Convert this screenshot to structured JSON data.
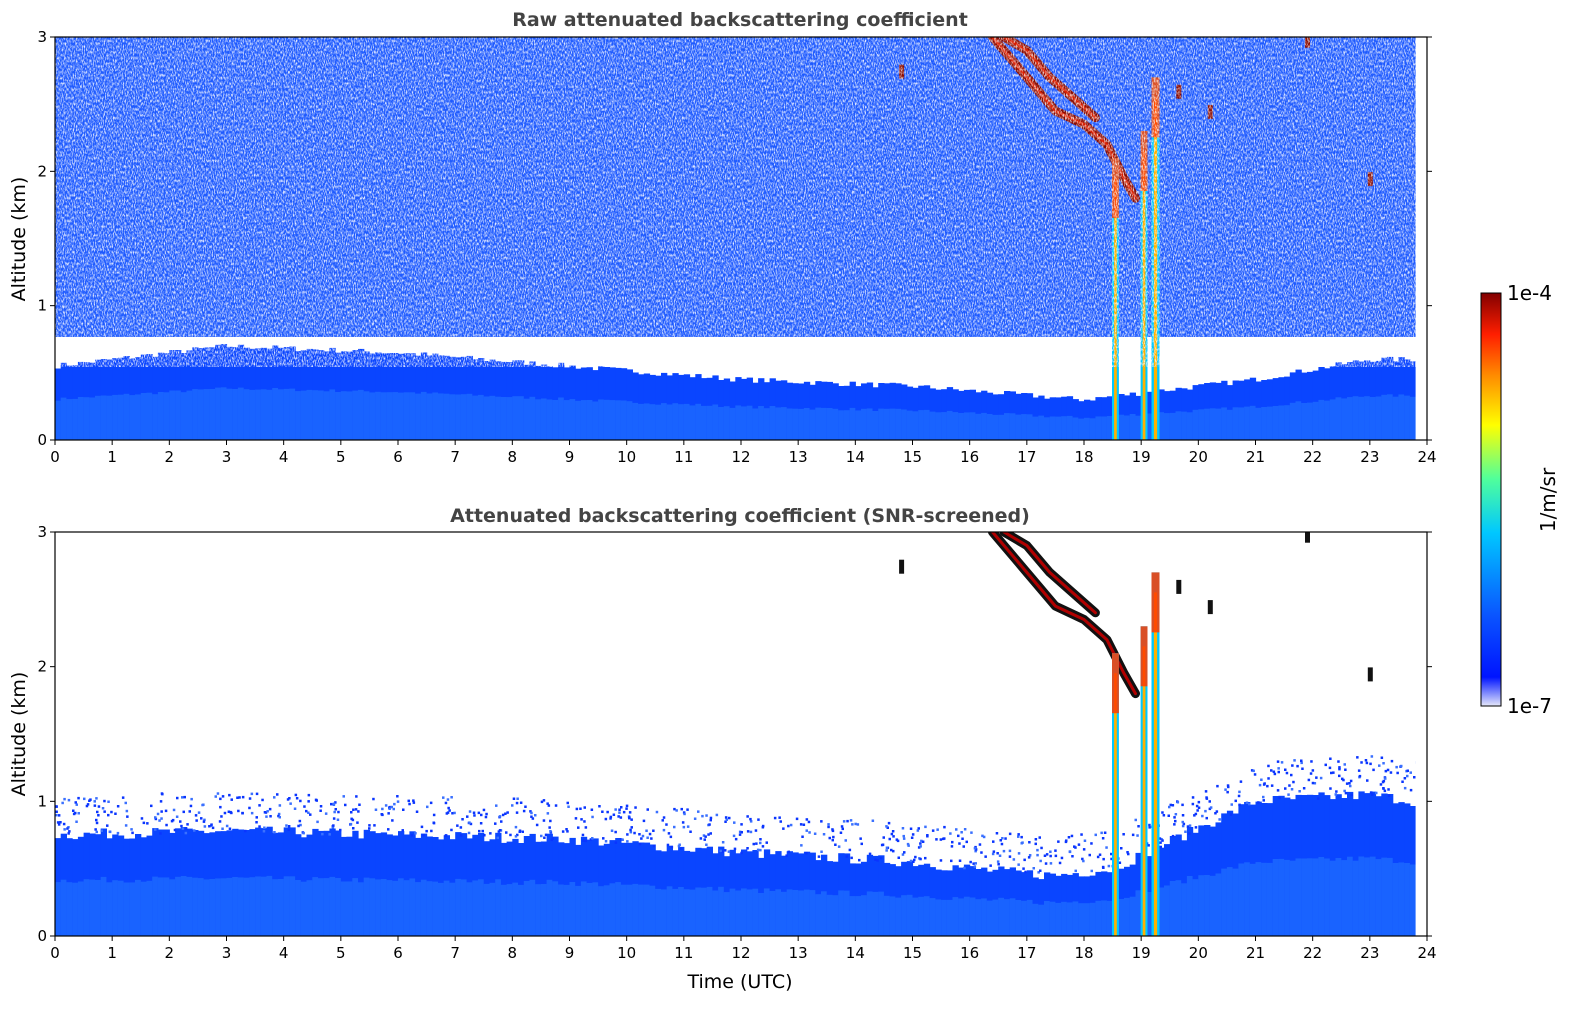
{
  "colors": {
    "background": "#ffffff",
    "title": "#444444",
    "colormap": [
      "#e6e8fa",
      "#0014ff",
      "#0a55ff",
      "#00c8ff",
      "#50ff9b",
      "#ffff00",
      "#ff8c00",
      "#ff1e00",
      "#820000"
    ],
    "screened_extra": "#111111"
  },
  "chart_data": [
    {
      "type": "heatmap",
      "title": "Raw attenuated backscattering coefficient",
      "xlabel": "",
      "ylabel": "Altitude (km)",
      "xlim": [
        0,
        24
      ],
      "ylim": [
        0,
        3
      ],
      "xticks": [
        "0",
        "1",
        "2",
        "3",
        "4",
        "5",
        "6",
        "7",
        "8",
        "9",
        "10",
        "11",
        "12",
        "13",
        "14",
        "15",
        "16",
        "17",
        "18",
        "19",
        "20",
        "21",
        "22",
        "23",
        "24"
      ],
      "yticks": [
        "0",
        "1",
        "2",
        "3"
      ],
      "data_end_hour": 23.8,
      "boundary_layer_top_km": [
        [
          0,
          0.55
        ],
        [
          3,
          0.7
        ],
        [
          6,
          0.65
        ],
        [
          9,
          0.55
        ],
        [
          12,
          0.45
        ],
        [
          15,
          0.4
        ],
        [
          16.5,
          0.35
        ],
        [
          18,
          0.3
        ],
        [
          21,
          0.45
        ],
        [
          23,
          0.6
        ],
        [
          23.8,
          0.6
        ]
      ],
      "cloud_features": [
        {
          "kind": "descending_layer",
          "points": [
            [
              16.4,
              3.0
            ],
            [
              17.0,
              2.7
            ],
            [
              17.5,
              2.45
            ],
            [
              18.0,
              2.35
            ],
            [
              18.4,
              2.2
            ],
            [
              18.7,
              1.95
            ],
            [
              18.9,
              1.8
            ]
          ],
          "value": "1e-4"
        },
        {
          "kind": "descending_layer",
          "points": [
            [
              16.6,
              3.0
            ],
            [
              17.0,
              2.9
            ],
            [
              17.4,
              2.7
            ],
            [
              17.8,
              2.55
            ],
            [
              18.2,
              2.4
            ]
          ],
          "value": "1e-4"
        },
        {
          "kind": "precipitation_column",
          "x": 18.55,
          "width_h": 0.12,
          "from_km": 0.0,
          "to_km": 2.1
        },
        {
          "kind": "precipitation_column",
          "x": 19.05,
          "width_h": 0.12,
          "from_km": 0.0,
          "to_km": 2.3
        },
        {
          "kind": "precipitation_column",
          "x": 19.25,
          "width_h": 0.14,
          "from_km": 0.0,
          "to_km": 2.7
        },
        {
          "kind": "patch",
          "x": 14.8,
          "y": 2.75
        },
        {
          "kind": "patch",
          "x": 19.65,
          "y": 2.6
        },
        {
          "kind": "patch",
          "x": 20.2,
          "y": 2.45
        },
        {
          "kind": "patch",
          "x": 21.9,
          "y": 2.98
        },
        {
          "kind": "patch",
          "x": 23.0,
          "y": 1.95
        }
      ]
    },
    {
      "type": "heatmap",
      "title": "Attenuated backscattering coefficient (SNR-screened)",
      "xlabel": "Time (UTC)",
      "ylabel": "Altitude (km)",
      "xlim": [
        0,
        24
      ],
      "ylim": [
        0,
        3
      ],
      "xticks": [
        "0",
        "1",
        "2",
        "3",
        "4",
        "5",
        "6",
        "7",
        "8",
        "9",
        "10",
        "11",
        "12",
        "13",
        "14",
        "15",
        "16",
        "17",
        "18",
        "19",
        "20",
        "21",
        "22",
        "23",
        "24"
      ],
      "yticks": [
        "0",
        "1",
        "2",
        "3"
      ],
      "data_end_hour": 23.8,
      "boundary_layer_top_km": [
        [
          0,
          0.75
        ],
        [
          3,
          0.78
        ],
        [
          6,
          0.75
        ],
        [
          9,
          0.72
        ],
        [
          12,
          0.62
        ],
        [
          15,
          0.55
        ],
        [
          16.5,
          0.48
        ],
        [
          17.5,
          0.45
        ],
        [
          18.5,
          0.5
        ],
        [
          20.5,
          0.9
        ],
        [
          21,
          1.0
        ],
        [
          23,
          1.05
        ],
        [
          23.8,
          1.0
        ]
      ],
      "cloud_features": [
        {
          "kind": "descending_layer",
          "points": [
            [
              16.4,
              3.0
            ],
            [
              17.0,
              2.7
            ],
            [
              17.5,
              2.45
            ],
            [
              18.0,
              2.35
            ],
            [
              18.4,
              2.2
            ],
            [
              18.7,
              1.95
            ],
            [
              18.9,
              1.8
            ]
          ],
          "value": "1e-4"
        },
        {
          "kind": "descending_layer",
          "points": [
            [
              16.6,
              3.0
            ],
            [
              17.0,
              2.9
            ],
            [
              17.4,
              2.7
            ],
            [
              17.8,
              2.55
            ],
            [
              18.2,
              2.4
            ]
          ],
          "value": "1e-4"
        },
        {
          "kind": "precipitation_column",
          "x": 18.55,
          "width_h": 0.12,
          "from_km": 0.0,
          "to_km": 2.1
        },
        {
          "kind": "precipitation_column",
          "x": 19.05,
          "width_h": 0.12,
          "from_km": 0.0,
          "to_km": 2.3
        },
        {
          "kind": "precipitation_column",
          "x": 19.25,
          "width_h": 0.14,
          "from_km": 0.0,
          "to_km": 2.7
        },
        {
          "kind": "patch",
          "x": 14.8,
          "y": 2.75
        },
        {
          "kind": "patch",
          "x": 19.65,
          "y": 2.6
        },
        {
          "kind": "patch",
          "x": 20.2,
          "y": 2.45
        },
        {
          "kind": "patch",
          "x": 21.9,
          "y": 2.98
        },
        {
          "kind": "patch",
          "x": 23.0,
          "y": 1.95
        }
      ]
    }
  ],
  "colorbar": {
    "label": "1/m/sr",
    "max_label": "1e-4",
    "min_label": "1e-7",
    "scale": "log"
  }
}
